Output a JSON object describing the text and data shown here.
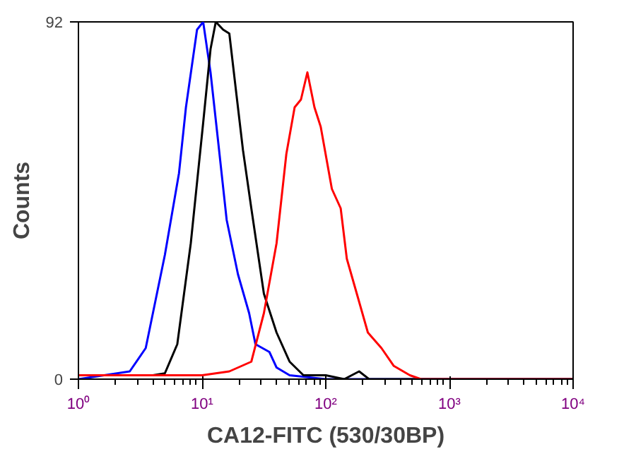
{
  "chart_data": {
    "type": "line",
    "xlabel": "CA12-FITC (530/30BP)",
    "ylabel": "Counts",
    "log": "x",
    "xlim": [
      1,
      10000
    ],
    "ylim": [
      0,
      92
    ],
    "xticks": [
      {
        "value": 1,
        "label": "10⁰"
      },
      {
        "value": 10,
        "label": "10¹"
      },
      {
        "value": 100,
        "label": "10²"
      },
      {
        "value": 1000,
        "label": "10³"
      },
      {
        "value": 10000,
        "label": "10⁴"
      }
    ],
    "yticks": [
      0,
      92
    ],
    "grid": false,
    "marker": "none",
    "line_style": "solid",
    "series": [
      {
        "color": "#0000ff",
        "x": [
          1,
          2.6,
          3.5,
          5.0,
          6.5,
          7.4,
          9.1,
          10.2,
          11.7,
          13.5,
          15.8,
          19.5,
          24,
          27,
          35,
          40,
          51,
          100,
          10000
        ],
        "values": [
          0,
          2,
          8,
          32,
          53,
          70,
          90,
          92,
          79,
          61,
          41,
          27,
          17,
          9,
          7,
          3,
          1,
          0,
          0
        ]
      },
      {
        "color": "#000000",
        "x": [
          1,
          4,
          5.0,
          6.3,
          8.1,
          10.2,
          11.7,
          12.9,
          14.8,
          16.6,
          19,
          21.4,
          25,
          31.6,
          40,
          51,
          66,
          100,
          141,
          186,
          224,
          10000
        ],
        "values": [
          1,
          1,
          1.5,
          9,
          35,
          66,
          85,
          92,
          90,
          89,
          73,
          59,
          44,
          22,
          12,
          4.5,
          1,
          1,
          0,
          2,
          0,
          0
        ]
      },
      {
        "color": "#ff0000",
        "x": [
          1,
          10,
          16.6,
          25,
          31.6,
          40,
          48,
          56,
          63,
          71,
          81,
          91,
          112,
          132,
          148,
          182,
          219,
          282,
          355,
          479,
          589,
          10000
        ],
        "values": [
          1,
          1,
          2,
          4.5,
          17,
          35,
          58,
          70,
          72,
          79,
          70,
          65,
          49,
          44,
          31,
          21,
          12,
          8,
          3.4,
          1,
          0,
          0
        ]
      }
    ]
  }
}
